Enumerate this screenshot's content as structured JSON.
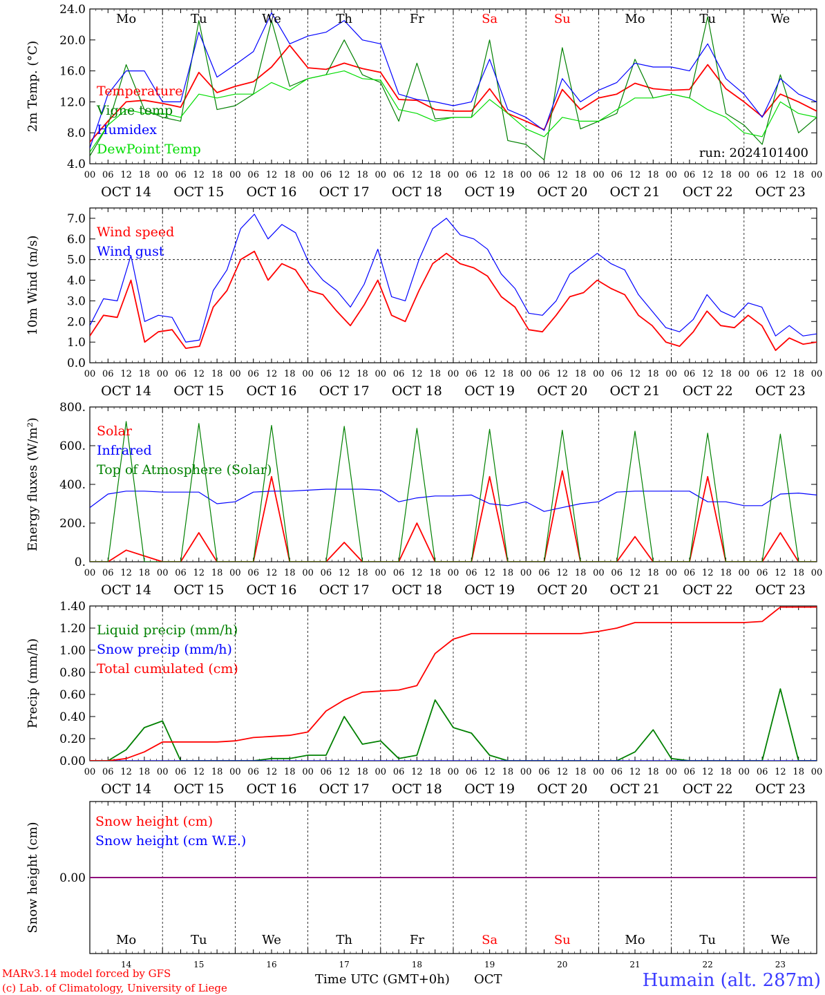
{
  "colors": {
    "red": "#ff0000",
    "dark_green": "#008000",
    "blue": "#0000ff",
    "light_green": "#00dd00",
    "purple": "#800080",
    "black": "#000000",
    "station_blue": "#3b3bff"
  },
  "x_axis": {
    "hour_ticks": [
      "00",
      "06",
      "12",
      "18"
    ],
    "last_hour_tick": "00",
    "dates": [
      "OCT 14",
      "OCT 15",
      "OCT 16",
      "OCT 17",
      "OCT 18",
      "OCT 19",
      "OCT 20",
      "OCT 21",
      "OCT 22",
      "OCT 23"
    ],
    "weekdays": [
      "Mo",
      "Tu",
      "We",
      "Th",
      "Fr",
      "Sa",
      "Su",
      "Mo",
      "Tu",
      "We"
    ],
    "weekend_days": [
      5,
      6
    ],
    "day_numbers": [
      "14",
      "15",
      "16",
      "17",
      "18",
      "19",
      "20",
      "21",
      "22",
      "23"
    ],
    "bottom_label": "Time UTC (GMT+0h)",
    "month": "OCT"
  },
  "footer": {
    "model_line": "MARv3.14 model forced by GFS",
    "copyright_line": "(c) Lab. of Climatology, University of Liege",
    "station": "Humain (alt. 287m)"
  },
  "chart_data": [
    {
      "type": "line",
      "ylabel": "2m Temp. (°C)",
      "ylim": [
        4.0,
        24.0
      ],
      "yticks": [
        "4.0",
        "8.0",
        "12.0",
        "16.0",
        "20.0",
        "24.0"
      ],
      "annotation": "run: 2024101400",
      "x_step_hours": 6,
      "series": [
        {
          "name": "Temperature",
          "color": "#ff0000",
          "values": [
            6.8,
            9.5,
            12.0,
            12.2,
            11.8,
            11.3,
            15.8,
            13.2,
            14.0,
            14.6,
            16.5,
            19.3,
            16.4,
            16.2,
            17.0,
            16.3,
            15.8,
            12.3,
            12.2,
            11.0,
            10.8,
            10.8,
            13.7,
            10.5,
            9.5,
            8.4,
            13.6,
            11.0,
            12.5,
            13.0,
            14.4,
            13.7,
            13.5,
            13.6,
            16.8,
            13.7,
            12.0,
            10.1,
            13.0,
            12.0,
            10.8
          ]
        },
        {
          "name": "Vigne temp",
          "color": "#008000",
          "values": [
            5.0,
            9.0,
            16.8,
            11.0,
            10.0,
            9.5,
            22.5,
            11.0,
            11.5,
            13.0,
            22.5,
            14.0,
            15.0,
            15.5,
            20.0,
            15.5,
            14.5,
            9.5,
            17.0,
            9.8,
            10.0,
            10.0,
            20.0,
            7.0,
            6.5,
            4.5,
            19.0,
            8.5,
            9.5,
            10.5,
            17.5,
            12.5,
            13.0,
            12.5,
            23.0,
            10.5,
            9.0,
            6.5,
            15.5,
            8.0,
            10.0
          ]
        },
        {
          "name": "Humidex",
          "color": "#0000ff",
          "values": [
            6.0,
            13.0,
            16.0,
            16.0,
            12.0,
            12.0,
            21.0,
            15.2,
            16.8,
            18.5,
            23.5,
            19.5,
            20.5,
            21.0,
            22.5,
            20.0,
            19.5,
            13.0,
            12.3,
            12.0,
            11.5,
            12.0,
            17.5,
            11.0,
            10.0,
            8.3,
            15.0,
            12.0,
            13.5,
            14.5,
            17.0,
            16.5,
            16.5,
            16.0,
            19.5,
            15.0,
            13.0,
            10.0,
            15.0,
            13.0,
            12.0
          ]
        },
        {
          "name": "DewPoint Temp",
          "color": "#00dd00",
          "values": [
            5.5,
            9.0,
            11.0,
            10.5,
            10.5,
            10.0,
            13.0,
            12.5,
            13.0,
            13.0,
            14.5,
            13.5,
            15.0,
            15.5,
            16.0,
            15.0,
            14.8,
            11.0,
            10.5,
            9.5,
            10.0,
            10.0,
            12.3,
            10.5,
            8.5,
            7.5,
            10.0,
            9.5,
            9.5,
            11.0,
            12.5,
            12.5,
            13.0,
            12.5,
            11.0,
            10.0,
            8.0,
            7.5,
            12.0,
            10.5,
            10.0
          ]
        }
      ]
    },
    {
      "type": "line",
      "ylabel": "10m Wind (m/s)",
      "ylim": [
        0.0,
        7.5
      ],
      "yticks": [
        "0.0",
        "1.0",
        "2.0",
        "3.0",
        "4.0",
        "5.0",
        "6.0",
        "7.0"
      ],
      "reference_line": 5.0,
      "x_step_hours": 6,
      "series": [
        {
          "name": "Wind speed",
          "color": "#ff0000",
          "values": [
            1.3,
            2.3,
            2.2,
            4.0,
            1.0,
            1.5,
            1.6,
            0.7,
            0.8,
            2.7,
            3.5,
            5.0,
            5.4,
            4.0,
            4.8,
            4.5,
            3.5,
            3.3,
            2.5,
            1.8,
            2.8,
            4.0,
            2.3,
            2.0,
            3.5,
            4.8,
            5.3,
            4.8,
            4.6,
            4.2,
            3.2,
            2.7,
            1.6,
            1.5,
            2.3,
            3.2,
            3.4,
            4.0,
            3.6,
            3.3,
            2.3,
            1.8,
            1.0,
            0.8,
            1.5,
            2.5,
            1.8,
            1.7,
            2.3,
            1.8,
            0.6,
            1.2,
            0.9,
            1.0
          ]
        },
        {
          "name": "Wind gust",
          "color": "#0000ff",
          "values": [
            1.8,
            3.1,
            3.0,
            5.2,
            2.0,
            2.3,
            2.2,
            1.0,
            1.1,
            3.5,
            4.5,
            6.5,
            7.2,
            6.0,
            6.7,
            6.3,
            4.8,
            4.0,
            3.5,
            2.7,
            3.8,
            5.5,
            3.2,
            3.0,
            5.0,
            6.5,
            7.0,
            6.2,
            6.0,
            5.5,
            4.3,
            3.6,
            2.4,
            2.3,
            3.0,
            4.3,
            4.8,
            5.3,
            4.8,
            4.5,
            3.3,
            2.5,
            1.7,
            1.5,
            2.1,
            3.3,
            2.5,
            2.2,
            2.9,
            2.7,
            1.3,
            1.8,
            1.3,
            1.4
          ]
        }
      ]
    },
    {
      "type": "line",
      "ylabel": "Energy fluxes (W/m²)",
      "ylim": [
        0,
        800
      ],
      "yticks": [
        "0.",
        "200.",
        "400.",
        "600.",
        "800."
      ],
      "x_step_hours": 6,
      "series": [
        {
          "name": "Solar",
          "color": "#ff0000",
          "values": [
            0,
            0,
            60,
            30,
            0,
            0,
            150,
            0,
            0,
            0,
            440,
            0,
            0,
            0,
            100,
            0,
            0,
            0,
            200,
            0,
            0,
            0,
            440,
            0,
            0,
            0,
            470,
            0,
            0,
            0,
            130,
            0,
            0,
            0,
            440,
            0,
            0,
            0,
            150,
            0,
            0
          ]
        },
        {
          "name": "Infrared",
          "color": "#0000ff",
          "values": [
            280,
            350,
            365,
            365,
            360,
            360,
            360,
            300,
            310,
            360,
            365,
            365,
            370,
            375,
            375,
            375,
            370,
            310,
            330,
            340,
            340,
            345,
            300,
            290,
            310,
            260,
            280,
            300,
            310,
            360,
            365,
            365,
            365,
            365,
            310,
            310,
            290,
            290,
            350,
            355,
            345
          ]
        },
        {
          "name": "Top of Atmosphere (Solar)",
          "color": "#008000",
          "values": [
            0,
            0,
            725,
            0,
            0,
            0,
            715,
            0,
            0,
            0,
            705,
            0,
            0,
            0,
            700,
            0,
            0,
            0,
            690,
            0,
            0,
            0,
            685,
            0,
            0,
            0,
            680,
            0,
            0,
            0,
            675,
            0,
            0,
            0,
            665,
            0,
            0,
            0,
            660,
            0,
            0
          ]
        }
      ]
    },
    {
      "type": "line",
      "ylabel": "Precip (mm/h)",
      "ylim": [
        0.0,
        1.4
      ],
      "yticks": [
        "0.00",
        "0.20",
        "0.40",
        "0.60",
        "0.80",
        "1.00",
        "1.20",
        "1.40"
      ],
      "x_step_hours": 6,
      "series": [
        {
          "name": "Liquid precip (mm/h)",
          "color": "#008000",
          "values": [
            0,
            0,
            0.1,
            0.3,
            0.36,
            0,
            0,
            0,
            0,
            0,
            0.02,
            0.02,
            0.05,
            0.05,
            0.4,
            0.15,
            0.18,
            0.02,
            0.05,
            0.55,
            0.3,
            0.25,
            0.05,
            0,
            0,
            0,
            0,
            0,
            0,
            0,
            0.08,
            0.28,
            0.02,
            0,
            0,
            0,
            0,
            0,
            0.65,
            0,
            0
          ]
        },
        {
          "name": "Snow precip (mm/h)",
          "color": "#0000ff",
          "values": [
            0,
            0,
            0,
            0,
            0,
            0,
            0,
            0,
            0,
            0,
            0,
            0,
            0,
            0,
            0,
            0,
            0,
            0,
            0,
            0,
            0,
            0,
            0,
            0,
            0,
            0,
            0,
            0,
            0,
            0,
            0,
            0,
            0,
            0,
            0,
            0,
            0,
            0,
            0,
            0,
            0
          ]
        },
        {
          "name": "Total cumulated (cm)",
          "color": "#ff0000",
          "values": [
            0,
            0,
            0.02,
            0.08,
            0.17,
            0.17,
            0.17,
            0.17,
            0.18,
            0.21,
            0.22,
            0.23,
            0.26,
            0.45,
            0.55,
            0.62,
            0.63,
            0.64,
            0.68,
            0.97,
            1.1,
            1.15,
            1.15,
            1.15,
            1.15,
            1.15,
            1.15,
            1.15,
            1.17,
            1.2,
            1.25,
            1.25,
            1.25,
            1.25,
            1.25,
            1.25,
            1.25,
            1.26,
            1.39,
            1.39,
            1.39
          ]
        }
      ]
    },
    {
      "type": "line",
      "ylabel": "Snow height (cm)",
      "ylim": [
        -1.0,
        1.0
      ],
      "yticks": [
        "0.00"
      ],
      "x_step_hours": 6,
      "series": [
        {
          "name": "Snow height (cm)",
          "color": "#ff0000",
          "values": [
            0,
            0
          ]
        },
        {
          "name": "Snow height (cm W.E.)",
          "color": "#0000ff",
          "values": [
            0,
            0
          ]
        }
      ]
    }
  ]
}
